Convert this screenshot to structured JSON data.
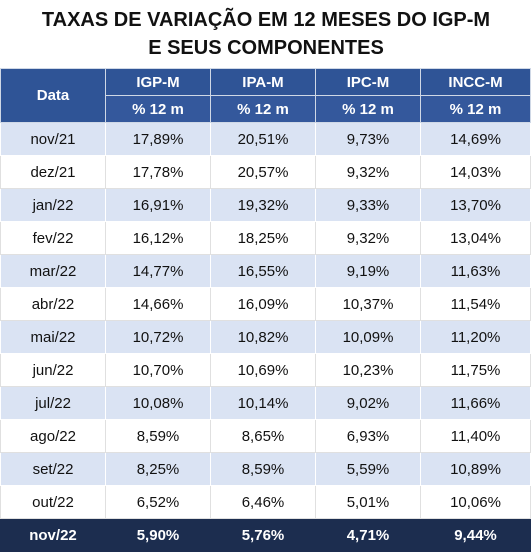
{
  "title": "TAXAS DE VARIAÇÃO EM 12 MESES DO IGP-M E SEUS COMPONENTES",
  "table": {
    "header": {
      "date": "Data",
      "columns": [
        "IGP-M",
        "IPA-M",
        "IPC-M",
        "INCC-M"
      ],
      "units": [
        "% 12 m",
        "% 12 m",
        "% 12 m",
        "% 12 m"
      ]
    },
    "rows": [
      [
        "nov/21",
        "17,89%",
        "20,51%",
        "9,73%",
        "14,69%"
      ],
      [
        "dez/21",
        "17,78%",
        "20,57%",
        "9,32%",
        "14,03%"
      ],
      [
        "jan/22",
        "16,91%",
        "19,32%",
        "9,33%",
        "13,70%"
      ],
      [
        "fev/22",
        "16,12%",
        "18,25%",
        "9,32%",
        "13,04%"
      ],
      [
        "mar/22",
        "14,77%",
        "16,55%",
        "9,19%",
        "11,63%"
      ],
      [
        "abr/22",
        "14,66%",
        "16,09%",
        "10,37%",
        "11,54%"
      ],
      [
        "mai/22",
        "10,72%",
        "10,82%",
        "10,09%",
        "11,20%"
      ],
      [
        "jun/22",
        "10,70%",
        "10,69%",
        "10,23%",
        "11,75%"
      ],
      [
        "jul/22",
        "10,08%",
        "10,14%",
        "9,02%",
        "11,66%"
      ],
      [
        "ago/22",
        "8,59%",
        "8,65%",
        "6,93%",
        "11,40%"
      ],
      [
        "set/22",
        "8,25%",
        "8,59%",
        "5,59%",
        "10,89%"
      ],
      [
        "out/22",
        "6,52%",
        "6,46%",
        "5,01%",
        "10,06%"
      ],
      [
        "nov/22",
        "5,90%",
        "5,76%",
        "4,71%",
        "9,44%"
      ]
    ]
  }
}
